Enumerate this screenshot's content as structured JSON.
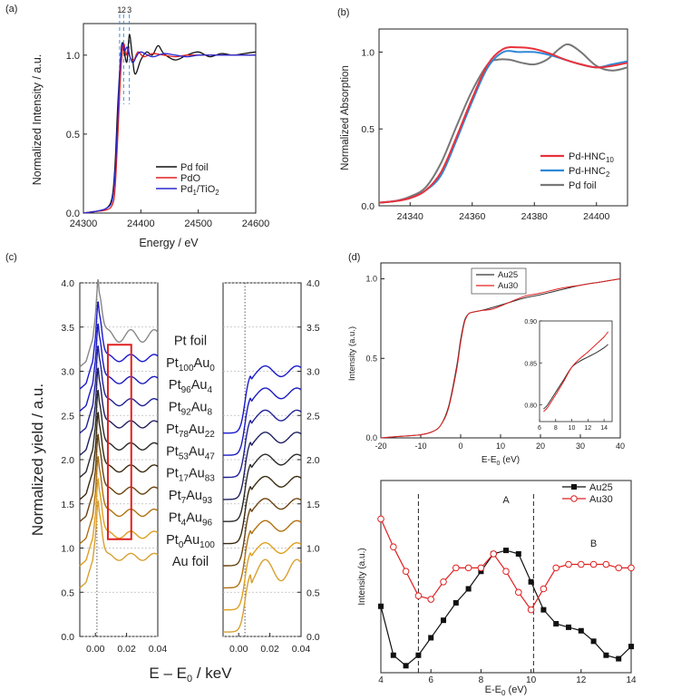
{
  "chart_data": [
    {
      "panel": "(a)",
      "type": "line",
      "xlabel": "Energy / eV",
      "ylabel": "Normalized Intensity / a.u.",
      "xlim": [
        24300,
        24600
      ],
      "ylim": [
        0.0,
        1.2
      ],
      "xticks": [
        "24300",
        "24400",
        "24500",
        "24600"
      ],
      "yticks": [
        "0.0",
        "0.5",
        "1.0"
      ],
      "markers": [
        "1",
        "2",
        "3"
      ],
      "marker_positions": [
        24363,
        24370,
        24380
      ],
      "legend": [
        {
          "label": "Pd foil",
          "color": "#111111"
        },
        {
          "label": "PdO",
          "color": "#e02020"
        },
        {
          "label": "Pd",
          "sub": "1",
          "tail": "/TiO",
          "sub2": "2",
          "color": "#2a2ad0"
        }
      ],
      "series": [
        {
          "name": "Pd foil",
          "color": "#111111",
          "x": [
            24300,
            24320,
            24340,
            24350,
            24355,
            24360,
            24365,
            24368,
            24372,
            24376,
            24380,
            24385,
            24390,
            24400,
            24410,
            24420,
            24430,
            24440,
            24460,
            24480,
            24500,
            24520,
            24540,
            24560,
            24580,
            24600
          ],
          "y": [
            0,
            0.01,
            0.03,
            0.1,
            0.3,
            0.7,
            1.0,
            1.08,
            1.0,
            0.96,
            1.13,
            1.0,
            0.88,
            0.97,
            1.02,
            1.0,
            1.06,
            1.01,
            0.97,
            1.0,
            1.02,
            0.99,
            1.01,
            1.0,
            1.01,
            1.02
          ]
        },
        {
          "name": "PdO",
          "color": "#e02020",
          "x": [
            24300,
            24320,
            24340,
            24350,
            24355,
            24360,
            24365,
            24370,
            24374,
            24378,
            24382,
            24388,
            24395,
            24405,
            24420,
            24440,
            24460,
            24480,
            24500,
            24520,
            24540,
            24560,
            24580,
            24600
          ],
          "y": [
            0,
            0.01,
            0.02,
            0.05,
            0.15,
            0.5,
            0.9,
            1.07,
            1.0,
            1.04,
            0.98,
            0.97,
            1.02,
            0.99,
            1.01,
            1.0,
            0.99,
            1.0,
            1.0,
            1.0,
            1.0,
            1.0,
            1.0,
            1.0
          ]
        },
        {
          "name": "Pd1/TiO2",
          "color": "#2a2ad0",
          "x": [
            24300,
            24320,
            24340,
            24350,
            24355,
            24360,
            24364,
            24368,
            24372,
            24376,
            24380,
            24386,
            24392,
            24400,
            24420,
            24440,
            24460,
            24480,
            24500,
            24520,
            24540,
            24560,
            24580,
            24600
          ],
          "y": [
            0,
            0.01,
            0.03,
            0.08,
            0.25,
            0.62,
            0.95,
            1.07,
            1.03,
            1.05,
            1.0,
            0.95,
            0.99,
            1.02,
            0.99,
            1.01,
            1.0,
            0.99,
            1.0,
            1.0,
            1.0,
            1.0,
            1.0,
            1.0
          ]
        }
      ]
    },
    {
      "panel": "(b)",
      "type": "line",
      "xlabel": "",
      "ylabel": "Normalized Absorption",
      "xlim": [
        24330,
        24410
      ],
      "ylim": [
        0.0,
        1.15
      ],
      "xticks": [
        "24340",
        "24360",
        "24380",
        "24400"
      ],
      "yticks": [
        "0.0",
        "0.5",
        "1.0"
      ],
      "legend": [
        {
          "label": "Pd-HNC",
          "sub": "10",
          "color": "#e8323c"
        },
        {
          "label": "Pd-HNC",
          "sub": "2",
          "color": "#2f88d8"
        },
        {
          "label": "Pd foil",
          "color": "#777777"
        }
      ],
      "series": [
        {
          "name": "Pd-HNC10",
          "color": "#e8323c",
          "x": [
            24330,
            24335,
            24340,
            24345,
            24350,
            24355,
            24360,
            24365,
            24370,
            24375,
            24380,
            24385,
            24390,
            24395,
            24400,
            24405,
            24410
          ],
          "y": [
            0.02,
            0.03,
            0.05,
            0.1,
            0.22,
            0.45,
            0.7,
            0.92,
            1.02,
            1.03,
            1.02,
            0.99,
            0.95,
            0.92,
            0.9,
            0.91,
            0.93
          ]
        },
        {
          "name": "Pd-HNC2",
          "color": "#2f88d8",
          "x": [
            24330,
            24335,
            24340,
            24345,
            24350,
            24355,
            24360,
            24365,
            24370,
            24375,
            24380,
            24385,
            24390,
            24395,
            24400,
            24405,
            24410
          ],
          "y": [
            0.02,
            0.03,
            0.05,
            0.1,
            0.2,
            0.43,
            0.68,
            0.9,
            1.0,
            1.0,
            1.0,
            0.98,
            0.95,
            0.92,
            0.9,
            0.92,
            0.94
          ]
        },
        {
          "name": "Pd foil",
          "color": "#777777",
          "x": [
            24330,
            24335,
            24340,
            24345,
            24350,
            24355,
            24360,
            24365,
            24368,
            24372,
            24376,
            24380,
            24384,
            24388,
            24391,
            24395,
            24400,
            24405,
            24410
          ],
          "y": [
            0.02,
            0.03,
            0.06,
            0.12,
            0.28,
            0.52,
            0.75,
            0.92,
            0.95,
            0.95,
            0.93,
            0.92,
            0.95,
            1.02,
            1.05,
            1.0,
            0.91,
            0.88,
            0.9
          ]
        }
      ]
    },
    {
      "panel": "(c)",
      "type": "line",
      "xlabel": "E – E",
      "xlabel_sub": "0",
      "xlabel_tail": " / keV",
      "ylabel": "Normalized yield / a.u.",
      "xlim": [
        -0.01,
        0.04
      ],
      "ylim": [
        0.0,
        4.0
      ],
      "xticks": [
        "0.00",
        "0.02",
        "0.04"
      ],
      "yticks": [
        "0.0",
        "0.5",
        "1.0",
        "1.5",
        "2.0",
        "2.5",
        "3.0",
        "3.5",
        "4.0"
      ],
      "labels": [
        {
          "main": "Pt foil"
        },
        {
          "main": "Pt",
          "sub": "100",
          "main2": "Au",
          "sub2": "0"
        },
        {
          "main": "Pt",
          "sub": "96",
          "main2": "Au",
          "sub2": "4"
        },
        {
          "main": "Pt",
          "sub": "92",
          "main2": "Au",
          "sub2": "8"
        },
        {
          "main": "Pt",
          "sub": "78",
          "main2": "Au",
          "sub2": "22"
        },
        {
          "main": "Pt",
          "sub": "53",
          "main2": "Au",
          "sub2": "47"
        },
        {
          "main": "Pt",
          "sub": "17",
          "main2": "Au",
          "sub2": "83"
        },
        {
          "main": "Pt",
          "sub": "7",
          "main2": "Au",
          "sub2": "93"
        },
        {
          "main": "Pt",
          "sub": "4",
          "main2": "Au",
          "sub2": "96"
        },
        {
          "main": "Pt",
          "sub": "0",
          "main2": "Au",
          "sub2": "100"
        },
        {
          "main": "Au foil"
        }
      ],
      "series_colors": [
        "#888888",
        "#1a1ad0",
        "#1a1ac0",
        "#20209a",
        "#202060",
        "#2a2a2a",
        "#3a2a10",
        "#6a4410",
        "#b07010",
        "#e0a020",
        "#d8a030"
      ],
      "left_offsets": [
        3.5,
        3.25,
        3.0,
        2.75,
        2.5,
        2.25,
        2.0,
        1.75,
        1.5,
        1.25,
        1.0
      ],
      "right_offsets": [
        0.0,
        2.5,
        2.25,
        2.0,
        1.75,
        1.5,
        1.25,
        1.0,
        0.75,
        0.5,
        0.25
      ],
      "highlight_range": [
        0.008,
        0.023
      ]
    },
    {
      "panel": "(d)",
      "type": "line",
      "top": {
        "xlabel": "E-E",
        "xlabel_sub": "0",
        "xlabel_tail": " (eV)",
        "ylabel": "Intensity (a.u.)",
        "xlim": [
          -20,
          40
        ],
        "ylim": [
          0.0,
          1.1
        ],
        "xticks": [
          "-20",
          "-10",
          "0",
          "10",
          "20",
          "30",
          "40"
        ],
        "yticks": [
          "0.0",
          "0.5",
          "1.0"
        ],
        "legend": [
          {
            "label": "Au25",
            "color": "#333333"
          },
          {
            "label": "Au30",
            "color": "#e02020"
          }
        ],
        "series": [
          {
            "name": "Au25",
            "color": "#333333",
            "x": [
              -20,
              -15,
              -10,
              -7,
              -5,
              -3,
              -1,
              0,
              1,
              2,
              3,
              5,
              8,
              12,
              16,
              20,
              25,
              30,
              35,
              40
            ],
            "y": [
              0.0,
              0.01,
              0.02,
              0.04,
              0.08,
              0.2,
              0.45,
              0.62,
              0.74,
              0.78,
              0.79,
              0.8,
              0.82,
              0.85,
              0.88,
              0.9,
              0.93,
              0.96,
              0.98,
              1.0
            ]
          },
          {
            "name": "Au30",
            "color": "#e02020",
            "x": [
              -20,
              -15,
              -10,
              -7,
              -5,
              -3,
              -1,
              0,
              1,
              2,
              3,
              5,
              8,
              12,
              16,
              20,
              25,
              30,
              35,
              40
            ],
            "y": [
              0.0,
              0.01,
              0.02,
              0.04,
              0.08,
              0.19,
              0.43,
              0.6,
              0.73,
              0.78,
              0.79,
              0.8,
              0.81,
              0.85,
              0.89,
              0.91,
              0.94,
              0.96,
              0.98,
              1.0
            ]
          }
        ],
        "inset": {
          "xlim": [
            6,
            15
          ],
          "ylim": [
            0.78,
            0.9
          ],
          "xticks": [
            "6",
            "8",
            "10",
            "12",
            "14"
          ],
          "yticks": [
            "0.80",
            "0.85",
            "0.90"
          ],
          "series": [
            {
              "name": "Au25",
              "color": "#333333",
              "x": [
                6.5,
                7,
                8,
                9,
                10,
                11,
                12,
                13,
                14,
                14.5
              ],
              "y": [
                0.795,
                0.8,
                0.815,
                0.83,
                0.845,
                0.852,
                0.857,
                0.862,
                0.868,
                0.872
              ]
            },
            {
              "name": "Au30",
              "color": "#e02020",
              "x": [
                6.5,
                7,
                8,
                9,
                10,
                11,
                12,
                13,
                14,
                14.5
              ],
              "y": [
                0.792,
                0.797,
                0.812,
                0.828,
                0.845,
                0.855,
                0.863,
                0.872,
                0.881,
                0.887
              ]
            }
          ]
        }
      },
      "bottom": {
        "xlabel": "E-E",
        "xlabel_sub": "0",
        "xlabel_tail": " (eV)",
        "ylabel": "Intensity (a.u.)",
        "xlim": [
          4,
          14
        ],
        "xticks": [
          "4",
          "6",
          "8",
          "10",
          "12",
          "14"
        ],
        "annotations": [
          "A",
          "B"
        ],
        "annotation_positions": [
          [
            9.0,
            0.97
          ],
          [
            12.5,
            0.72
          ]
        ],
        "vlines": [
          5.5,
          10.1
        ],
        "legend": [
          {
            "label": "Au25",
            "color": "#111111"
          },
          {
            "label": "Au30",
            "color": "#e02020"
          }
        ],
        "series": [
          {
            "name": "Au25",
            "color": "#111111",
            "marker": "square",
            "x": [
              4.0,
              4.5,
              5.0,
              5.5,
              6.0,
              6.5,
              7.0,
              7.5,
              8.0,
              8.5,
              9.0,
              9.5,
              10.0,
              10.5,
              11.0,
              11.5,
              12.0,
              12.5,
              13.0,
              13.5,
              14.0
            ],
            "y": [
              0.38,
              0.1,
              0.04,
              0.1,
              0.2,
              0.3,
              0.4,
              0.48,
              0.58,
              0.68,
              0.7,
              0.68,
              0.52,
              0.36,
              0.28,
              0.26,
              0.24,
              0.18,
              0.1,
              0.08,
              0.15
            ]
          },
          {
            "name": "Au30",
            "color": "#e02020",
            "marker": "circle",
            "x": [
              4.0,
              4.5,
              5.0,
              5.5,
              6.0,
              6.5,
              7.0,
              7.5,
              8.0,
              8.5,
              9.0,
              9.5,
              10.0,
              10.5,
              11.0,
              11.5,
              12.0,
              12.5,
              13.0,
              13.5,
              14.0
            ],
            "y": [
              0.88,
              0.72,
              0.58,
              0.44,
              0.42,
              0.52,
              0.6,
              0.6,
              0.6,
              0.68,
              0.58,
              0.46,
              0.36,
              0.48,
              0.6,
              0.62,
              0.62,
              0.62,
              0.62,
              0.6,
              0.6
            ]
          }
        ]
      }
    }
  ]
}
